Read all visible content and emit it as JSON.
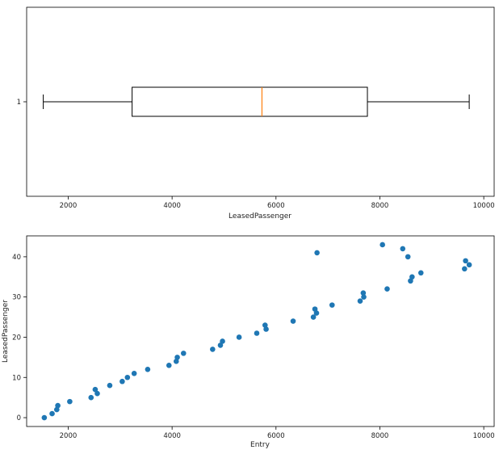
{
  "chart_data": [
    {
      "type": "boxplot",
      "orientation": "horizontal",
      "xlabel": "LeasedPassenger",
      "ylabel": "",
      "category_labels": [
        "1"
      ],
      "box": {
        "min": 1520,
        "q1": 3230,
        "median": 5730,
        "q3": 7760,
        "max": 9720
      },
      "xlim": [
        1200,
        10200
      ],
      "xticks": [
        2000,
        4000,
        6000,
        8000,
        10000
      ],
      "colors": {
        "box": "#000000",
        "median": "#ff7f0e"
      },
      "grid": false
    },
    {
      "type": "scatter",
      "xlabel": "Entry",
      "ylabel": "LeasedPassenger",
      "xlim": [
        1200,
        10200
      ],
      "ylim": [
        -2.2,
        45.2
      ],
      "xticks": [
        2000,
        4000,
        6000,
        8000,
        10000
      ],
      "yticks": [
        0,
        10,
        20,
        30,
        40
      ],
      "color": "#1f77b4",
      "grid": false,
      "points": [
        [
          1540,
          0
        ],
        [
          1690,
          1
        ],
        [
          1780,
          2
        ],
        [
          1800,
          3
        ],
        [
          2030,
          4
        ],
        [
          2440,
          5
        ],
        [
          2560,
          6
        ],
        [
          2520,
          7
        ],
        [
          2800,
          8
        ],
        [
          3040,
          9
        ],
        [
          3140,
          10
        ],
        [
          3270,
          11
        ],
        [
          3530,
          12
        ],
        [
          3940,
          13
        ],
        [
          4080,
          14
        ],
        [
          4100,
          15
        ],
        [
          4220,
          16
        ],
        [
          4780,
          17
        ],
        [
          4930,
          18
        ],
        [
          4970,
          19
        ],
        [
          5290,
          20
        ],
        [
          5630,
          21
        ],
        [
          5810,
          22
        ],
        [
          5790,
          23
        ],
        [
          6330,
          24
        ],
        [
          6720,
          25
        ],
        [
          6780,
          26
        ],
        [
          6750,
          27
        ],
        [
          7080,
          28
        ],
        [
          7620,
          29
        ],
        [
          7690,
          30
        ],
        [
          7680,
          31
        ],
        [
          8140,
          32
        ],
        [
          8590,
          34
        ],
        [
          8620,
          35
        ],
        [
          8790,
          36
        ],
        [
          9630,
          37
        ],
        [
          9720,
          38
        ],
        [
          9650,
          39
        ],
        [
          8540,
          40
        ],
        [
          6790,
          41
        ],
        [
          8440,
          42
        ],
        [
          8050,
          43
        ]
      ]
    }
  ]
}
